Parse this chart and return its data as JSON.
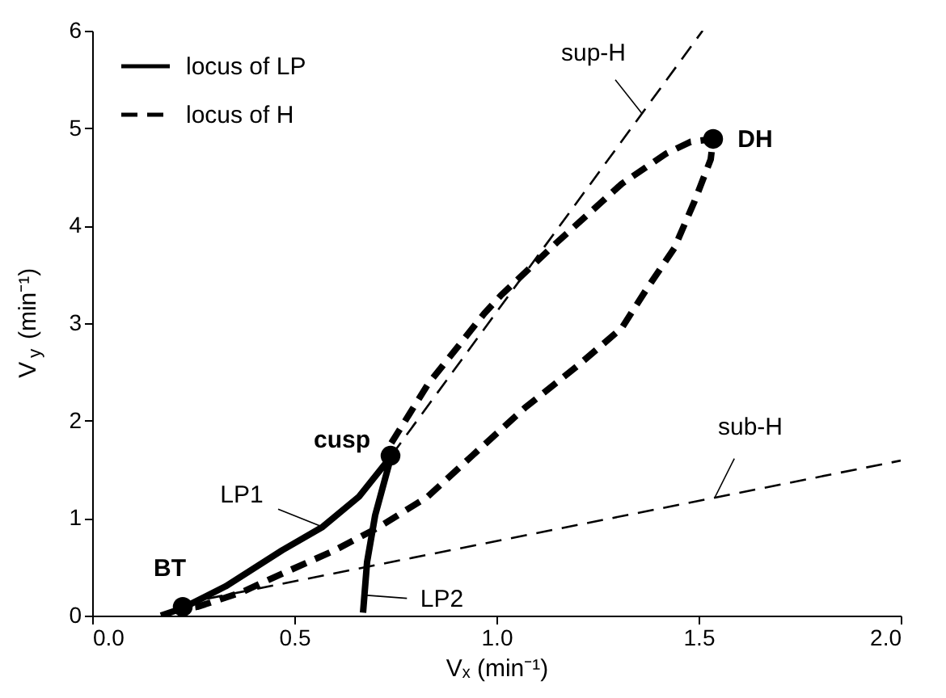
{
  "chart_data": {
    "type": "line",
    "xlabel": "Vₓ (min⁻¹)",
    "ylabel": "V$_{y}$ (min⁻¹)",
    "xlim": [
      0,
      2
    ],
    "xticks": [
      {
        "value": 0,
        "label": "0.0"
      },
      {
        "value": 0.5,
        "label": "0.5"
      },
      {
        "value": 1,
        "label": "1.0"
      },
      {
        "value": 1.5,
        "label": "1.5"
      },
      {
        "value": 2,
        "label": "2.0"
      }
    ],
    "ylim": [
      0,
      6
    ],
    "yticks": [
      0,
      1,
      2,
      3,
      4,
      5,
      6
    ],
    "grid": false,
    "legend": "top left",
    "series": [
      {
        "name": "locus of LP",
        "color": "#000000",
        "line_style": "solid",
        "x": [
          0.17,
          0.22,
          0.33,
          0.47,
          0.57,
          0.66,
          0.735,
          0.74,
          0.7,
          0.68,
          0.67
        ],
        "values": [
          0.0,
          0.07,
          0.3,
          0.67,
          0.91,
          1.22,
          1.61,
          1.64,
          1.03,
          0.55,
          0.03
        ]
      },
      {
        "name": "locus of H",
        "color": "#000000",
        "line_style": "dashed",
        "x": [
          0.74,
          0.83,
          0.97,
          1.01,
          1.15,
          1.31,
          1.42,
          1.48,
          1.536,
          1.53,
          1.49,
          1.44,
          1.37,
          1.31,
          1.2,
          1.07,
          0.94,
          0.83,
          0.71,
          0.6,
          0.47,
          0.37,
          0.26,
          0.22
        ],
        "values": [
          1.77,
          2.37,
          3.1,
          3.28,
          3.83,
          4.43,
          4.74,
          4.86,
          4.89,
          4.68,
          4.25,
          3.77,
          3.34,
          2.95,
          2.56,
          2.13,
          1.64,
          1.22,
          0.91,
          0.67,
          0.43,
          0.24,
          0.09,
          0.07
        ]
      },
      {
        "color": "#000000",
        "line_style": "dashed",
        "x": [
          0.74,
          1.51
        ],
        "values": [
          1.64,
          6.0
        ]
      },
      {
        "color": "#000000",
        "line_style": "dashed",
        "x": [
          0.22,
          2.0
        ],
        "values": [
          0.12,
          1.59
        ]
      },
      {
        "type": "scatter",
        "marker": "circle",
        "color": "#000000",
        "x": [
          0.224,
          0.738,
          1.536
        ],
        "values": [
          0.09,
          1.64,
          4.89
        ]
      }
    ],
    "annotations": [
      {
        "text": "BT",
        "x": 0.224,
        "y": 0.09
      },
      {
        "text": "cusp",
        "x": 0.738,
        "y": 1.64
      },
      {
        "text": "DH",
        "x": 1.536,
        "y": 4.89
      },
      {
        "text": "sup-H",
        "x": 1.36,
        "y": 5.15
      },
      {
        "text": "sub-H",
        "x": 1.54,
        "y": 1.21
      },
      {
        "text": "LP1",
        "x": 0.57,
        "y": 0.91
      },
      {
        "text": "LP2",
        "x": 0.673,
        "y": 0.21
      }
    ]
  }
}
